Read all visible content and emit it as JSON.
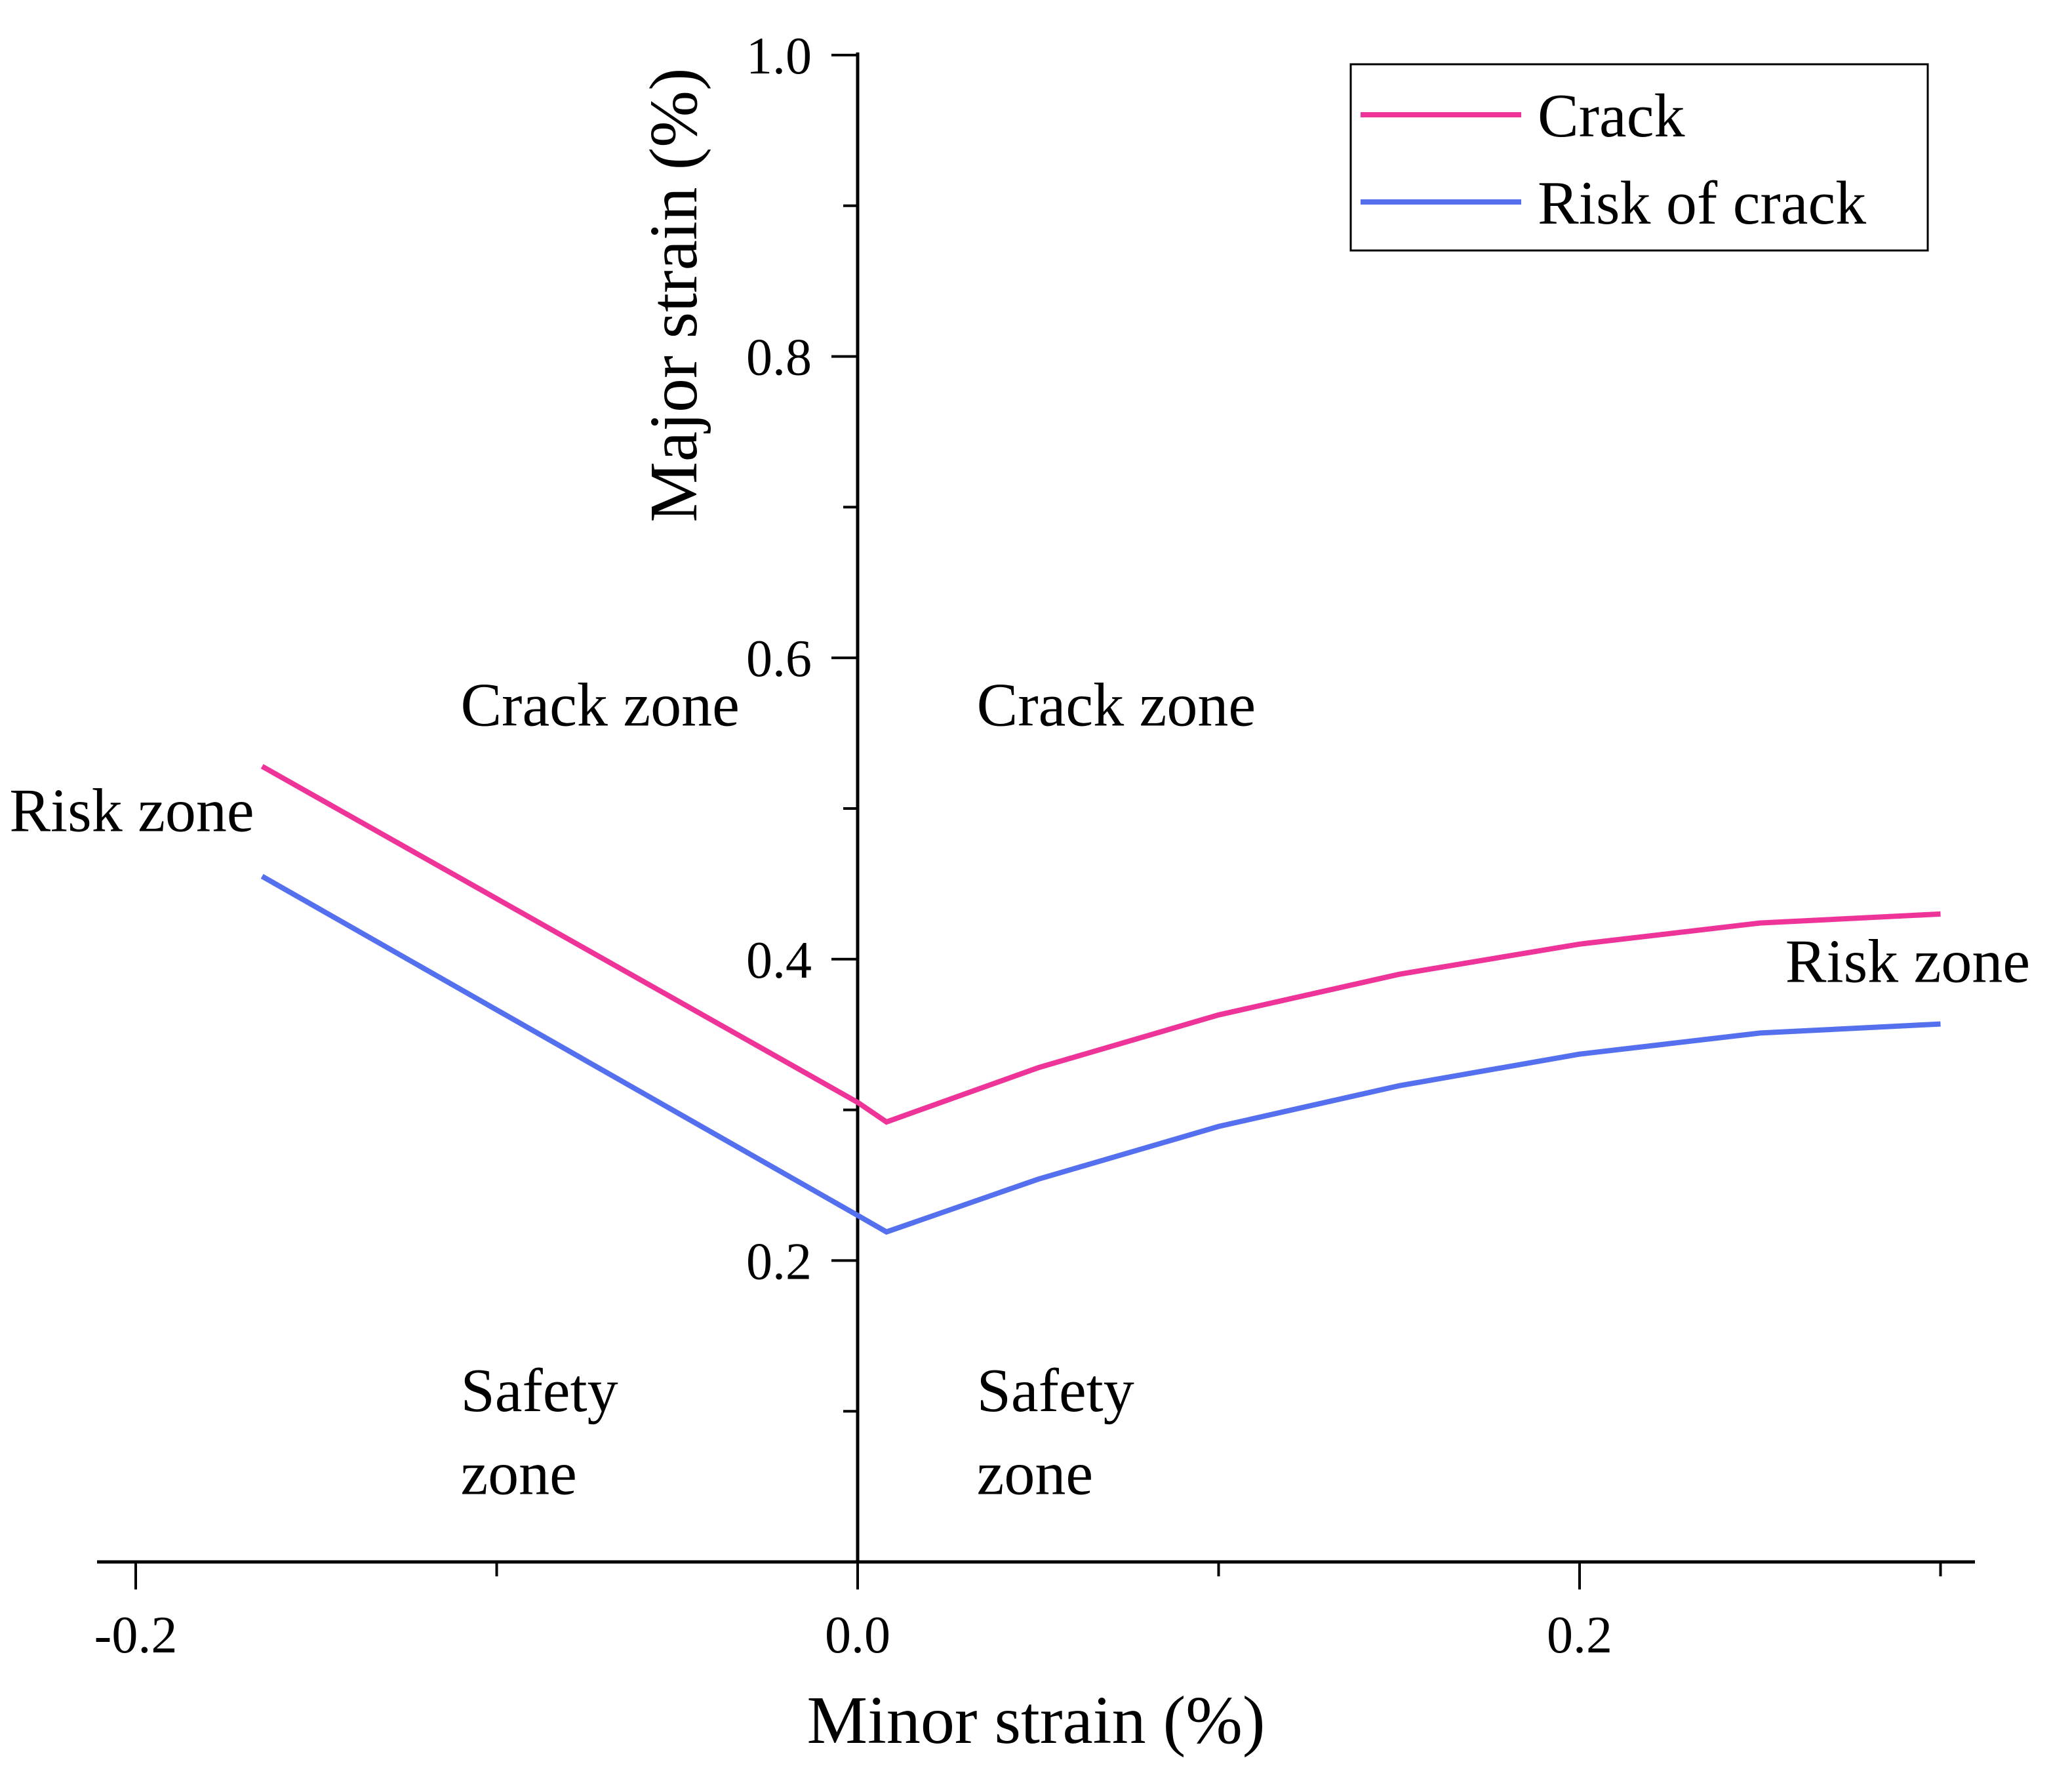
{
  "chart_data": {
    "type": "line",
    "xlabel": "Minor strain (%)",
    "ylabel": "Major strain (%)",
    "xlim": [
      -0.22,
      0.3
    ],
    "ylim": [
      0.0,
      1.0
    ],
    "x_ticks": [
      {
        "value": -0.2,
        "label": "-0.2"
      },
      {
        "value": 0.0,
        "label": "0.0"
      },
      {
        "value": 0.2,
        "label": "0.2"
      }
    ],
    "x_minor_ticks": [
      -0.1,
      0.1,
      0.3
    ],
    "y_ticks": [
      {
        "value": 0.2,
        "label": "0.2"
      },
      {
        "value": 0.4,
        "label": "0.4"
      },
      {
        "value": 0.6,
        "label": "0.6"
      },
      {
        "value": 0.8,
        "label": "0.8"
      },
      {
        "value": 1.0,
        "label": "1.0"
      }
    ],
    "y_minor_ticks": [
      0.1,
      0.3,
      0.5,
      0.7,
      0.9
    ],
    "legend_position": "top-right",
    "series": [
      {
        "name": "Crack",
        "color": "#ee3399",
        "points": [
          [
            -0.165,
            0.528
          ],
          [
            0.0,
            0.305
          ],
          [
            0.008,
            0.292
          ],
          [
            0.05,
            0.328
          ],
          [
            0.1,
            0.363
          ],
          [
            0.15,
            0.39
          ],
          [
            0.2,
            0.41
          ],
          [
            0.25,
            0.424
          ],
          [
            0.3,
            0.43
          ]
        ]
      },
      {
        "name": "Risk of crack",
        "color": "#5570ee",
        "points": [
          [
            -0.165,
            0.455
          ],
          [
            0.0,
            0.23
          ],
          [
            0.008,
            0.219
          ],
          [
            0.05,
            0.254
          ],
          [
            0.1,
            0.289
          ],
          [
            0.15,
            0.316
          ],
          [
            0.2,
            0.337
          ],
          [
            0.25,
            0.351
          ],
          [
            0.3,
            0.357
          ]
        ]
      }
    ],
    "annotations": [
      {
        "text": "Crack zone",
        "x": -0.11,
        "y": 0.555
      },
      {
        "text": "Crack zone",
        "x": 0.033,
        "y": 0.555
      },
      {
        "text": "Risk zone",
        "x": -0.235,
        "y": 0.485
      },
      {
        "text": "Risk zone",
        "x": 0.257,
        "y": 0.385
      },
      {
        "text": "Safety",
        "x": -0.11,
        "y": 0.1
      },
      {
        "text": "zone",
        "x": -0.11,
        "y": 0.045
      },
      {
        "text": "Safety",
        "x": 0.033,
        "y": 0.1
      },
      {
        "text": "zone",
        "x": 0.033,
        "y": 0.045
      }
    ]
  }
}
